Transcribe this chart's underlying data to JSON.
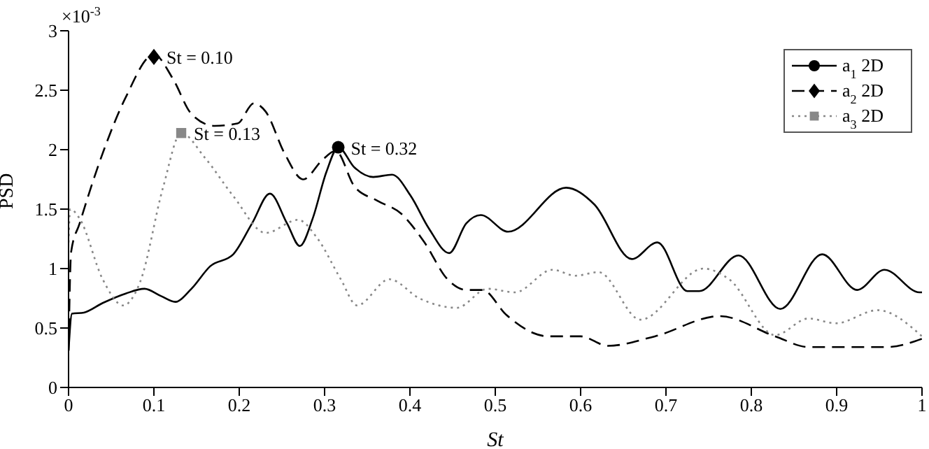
{
  "chart_data": {
    "type": "line",
    "xlabel": "St",
    "ylabel": "PSD",
    "xlim": [
      0,
      1
    ],
    "ylim": [
      0,
      3
    ],
    "xticks": [
      0,
      0.1,
      0.2,
      0.3,
      0.4,
      0.5,
      0.6,
      0.7,
      0.8,
      0.9,
      1
    ],
    "yticks": [
      0,
      0.5,
      1,
      1.5,
      2,
      2.5,
      3
    ],
    "grid": false,
    "legend": "top right",
    "annotations": [
      "×10$^{-3}$",
      {
        "text": "St = 0.10",
        "x": 0.1,
        "y": 2.78
      },
      {
        "text": "St = 0.13",
        "x": 0.132,
        "y": 2.14
      },
      {
        "text": "St = 0.32",
        "x": 0.316,
        "y": 2.02
      }
    ],
    "series": [
      {
        "name": "a$_{1}$ 2D",
        "color": "#000000",
        "line_style": "solid",
        "x": [
          0,
          0.004,
          0.018,
          0.04,
          0.067,
          0.089,
          0.108,
          0.125,
          0.144,
          0.166,
          0.193,
          0.215,
          0.236,
          0.256,
          0.271,
          0.286,
          0.302,
          0.316,
          0.335,
          0.357,
          0.379,
          0.401,
          0.422,
          0.446,
          0.466,
          0.483,
          0.515,
          0.583,
          0.616,
          0.66,
          0.69,
          0.725,
          0.739,
          0.785,
          0.834,
          0.883,
          0.924,
          0.956,
          0.997,
          1
        ],
        "values": [
          0.31,
          0.62,
          0.63,
          0.71,
          0.79,
          0.83,
          0.77,
          0.72,
          0.83,
          1.02,
          1.12,
          1.38,
          1.63,
          1.38,
          1.19,
          1.42,
          1.81,
          2.02,
          1.85,
          1.77,
          1.79,
          1.61,
          1.34,
          1.13,
          1.38,
          1.45,
          1.31,
          1.68,
          1.54,
          1.08,
          1.22,
          0.81,
          0.81,
          1.11,
          0.66,
          1.12,
          0.82,
          0.99,
          0.8,
          0.8
        ]
      },
      {
        "name": "a$_{2}$ 2D",
        "color": "#000000",
        "line_style": "dashed",
        "x": [
          0,
          0.003,
          0.013,
          0.04,
          0.067,
          0.1,
          0.122,
          0.144,
          0.171,
          0.198,
          0.217,
          0.231,
          0.253,
          0.275,
          0.297,
          0.313,
          0.335,
          0.362,
          0.39,
          0.417,
          0.444,
          0.466,
          0.485,
          0.513,
          0.562,
          0.6,
          0.632,
          0.687,
          0.763,
          0.828,
          0.867,
          0.959,
          1
        ],
        "values": [
          0.31,
          1.14,
          1.38,
          1.97,
          2.44,
          2.8,
          2.6,
          2.3,
          2.2,
          2.22,
          2.39,
          2.32,
          1.97,
          1.75,
          1.91,
          1.99,
          1.69,
          1.57,
          1.46,
          1.22,
          0.91,
          0.82,
          0.82,
          0.61,
          0.43,
          0.43,
          0.35,
          0.43,
          0.6,
          0.43,
          0.34,
          0.34,
          0.41
        ]
      },
      {
        "name": "a$_{3}$ 2D",
        "color": "#888888",
        "line_style": "dotted",
        "x": [
          0,
          0.002,
          0.013,
          0.04,
          0.064,
          0.084,
          0.111,
          0.132,
          0.16,
          0.193,
          0.231,
          0.269,
          0.291,
          0.319,
          0.338,
          0.376,
          0.411,
          0.455,
          0.491,
          0.523,
          0.567,
          0.594,
          0.621,
          0.67,
          0.744,
          0.774,
          0.828,
          0.867,
          0.899,
          0.948,
          1
        ],
        "values": [
          1.22,
          1.5,
          1.42,
          0.91,
          0.69,
          0.89,
          1.69,
          2.14,
          1.93,
          1.61,
          1.3,
          1.41,
          1.26,
          0.91,
          0.69,
          0.91,
          0.75,
          0.67,
          0.83,
          0.8,
          0.99,
          0.94,
          0.97,
          0.57,
          1.0,
          0.91,
          0.44,
          0.58,
          0.54,
          0.65,
          0.43
        ]
      },
      {
        "type": "scatter",
        "color": "#000000",
        "marker": "circle",
        "x": [
          0.316
        ],
        "values": [
          2.02
        ]
      },
      {
        "type": "scatter",
        "color": "#000000",
        "marker": "diamond",
        "x": [
          0.1
        ],
        "values": [
          2.78
        ]
      },
      {
        "type": "scatter",
        "color": "#888888",
        "marker": "square",
        "x": [
          0.132
        ],
        "values": [
          2.14
        ]
      }
    ]
  }
}
